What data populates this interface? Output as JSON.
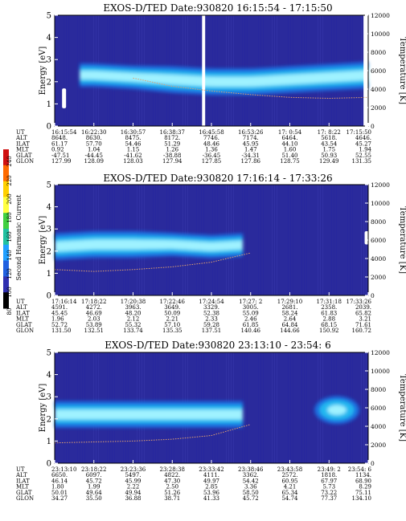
{
  "colors": {
    "background": "#2a2a9c",
    "band_outer": "#1a6fe0",
    "band_mid": "#22b8f0",
    "band_core": "#9ff2ff",
    "temperature_trace": "#e0a070"
  },
  "colorbar": {
    "label": "Second Harmonic Current",
    "ticks": [
      "240",
      "220",
      "200",
      "180",
      "160",
      "140",
      "120",
      "100",
      "80"
    ],
    "scale_colors": [
      "#d01010",
      "#ff6a00",
      "#ffd000",
      "#ffff40",
      "#40d040",
      "#20c0a0",
      "#20a0ff",
      "#2060e0",
      "#3030b0",
      "#000000"
    ]
  },
  "chart_data": [
    {
      "type": "heatmap",
      "title": "EXOS-D/TED   Date:930820   16:15:54 - 17:15:50",
      "ylabel": "Energy [eV]",
      "ylabel_right": "Temperature [K]",
      "ylim": [
        0,
        5
      ],
      "ylim_right": [
        0,
        12000
      ],
      "yticks": [
        "0",
        "1",
        "2",
        "3",
        "4",
        "5"
      ],
      "yticks_right": [
        "0",
        "2000",
        "4000",
        "6000",
        "8000",
        "10000",
        "12000"
      ],
      "x_rows": [
        {
          "label": "UT",
          "values": [
            "16:15:54",
            "16:22:30",
            "16:30:57",
            "16:38:37",
            "16:45:58",
            "16:53:26",
            "17: 0:54",
            "17: 8:22",
            "17:15:50"
          ]
        },
        {
          "label": "ALT",
          "values": [
            "8648.",
            "8630.",
            "8475.",
            "8172.",
            "7746.",
            "7174.",
            "6464.",
            "5618.",
            "4646."
          ]
        },
        {
          "label": "ILAT",
          "values": [
            "61.17",
            "57.70",
            "54.46",
            "51.29",
            "48.46",
            "45.95",
            "44.10",
            "43.54",
            "45.27"
          ]
        },
        {
          "label": "MLT",
          "values": [
            "0.92",
            "1.04",
            "1.15",
            "1.26",
            "1.36",
            "1.47",
            "1.60",
            "1.75",
            "1.94"
          ]
        },
        {
          "label": "GLAT",
          "values": [
            "-47.51",
            "-44.45",
            "-41.62",
            "-38.88",
            "-36.45",
            "-34.31",
            "51.40",
            "50.93",
            "52.55"
          ]
        },
        {
          "label": "GLON",
          "values": [
            "127.99",
            "128.09",
            "128.03",
            "127.94",
            "127.85",
            "127.86",
            "128.75",
            "129.49",
            "131.35"
          ]
        }
      ],
      "band": {
        "start": 0.08,
        "end": 1.0,
        "center_ev": [
          2.3,
          2.3,
          2.2,
          2.1,
          2.0,
          2.0,
          2.1,
          2.2,
          2.3
        ],
        "width_ev": [
          0.7,
          0.7,
          0.7,
          0.8,
          0.8,
          0.8,
          0.8,
          0.8,
          0.8
        ]
      },
      "temperature_k": [
        null,
        null,
        5200,
        4300,
        3800,
        3400,
        3100,
        3000,
        3100
      ],
      "gaps": [
        [
          0.47,
          0.48
        ],
        [
          0.985,
          1.0
        ]
      ],
      "markers": [
        [
          0.03,
          0.8,
          1.7
        ]
      ]
    },
    {
      "type": "heatmap",
      "title": "EXOS-D/TED   Date:930820   17:16:14 - 17:33:26",
      "ylabel": "Energy [eV]",
      "ylabel_right": "Temperature [K]",
      "ylim": [
        0,
        5
      ],
      "ylim_right": [
        0,
        12000
      ],
      "yticks": [
        "0",
        "1",
        "2",
        "3",
        "4",
        "5"
      ],
      "yticks_right": [
        "0",
        "2000",
        "4000",
        "6000",
        "8000",
        "10000",
        "12000"
      ],
      "x_rows": [
        {
          "label": "UT",
          "values": [
            "17:16:14",
            "17:18:22",
            "17:20:38",
            "17:22:46",
            "17:24:54",
            "17:27: 2",
            "17:29:10",
            "17:31:18",
            "17:33:26"
          ]
        },
        {
          "label": "ALT",
          "values": [
            "4591.",
            "4272.",
            "3963.",
            "3649.",
            "3329.",
            "3005.",
            "2681.",
            "2358.",
            "2039."
          ]
        },
        {
          "label": "ILAT",
          "values": [
            "45.45",
            "46.69",
            "48.20",
            "50.09",
            "52.38",
            "55.09",
            "58.24",
            "61.83",
            "65.82"
          ]
        },
        {
          "label": "MLT",
          "values": [
            "1.96",
            "2.03",
            "2.12",
            "2.21",
            "2.33",
            "2.46",
            "2.64",
            "2.88",
            "3.21"
          ]
        },
        {
          "label": "GLAT",
          "values": [
            "52.72",
            "53.89",
            "55.32",
            "57.10",
            "59.28",
            "61.85",
            "64.84",
            "68.15",
            "71.61"
          ]
        },
        {
          "label": "GLON",
          "values": [
            "131.50",
            "132.51",
            "133.74",
            "135.35",
            "137.51",
            "140.46",
            "144.66",
            "150.92",
            "160.72"
          ]
        }
      ],
      "band": {
        "start": 0.0,
        "end": 0.6,
        "center_ev": [
          2.2,
          2.3,
          2.3,
          2.3,
          2.2,
          2.3,
          2.6,
          2.9,
          3.0
        ],
        "width_ev": [
          0.8,
          0.8,
          0.8,
          0.7,
          0.7,
          0.7,
          0.8,
          0.8,
          0.8
        ]
      },
      "temperature_k": [
        2800,
        2600,
        2800,
        3100,
        3600,
        4600,
        null,
        null,
        null
      ],
      "gaps": [],
      "markers": [
        [
          0.995,
          2.3,
          2.9
        ]
      ]
    },
    {
      "type": "heatmap",
      "title": "EXOS-D/TED   Date:930820   23:13:10 - 23:54: 6",
      "ylabel": "Energy [eV]",
      "ylabel_right": "Temperature [K]",
      "ylim": [
        0,
        5
      ],
      "ylim_right": [
        0,
        12000
      ],
      "yticks": [
        "0",
        "1",
        "2",
        "3",
        "4",
        "5"
      ],
      "yticks_right": [
        "0",
        "2000",
        "4000",
        "6000",
        "8000",
        "10000",
        "12000"
      ],
      "x_rows": [
        {
          "label": "UT",
          "values": [
            "23:13:10",
            "23:18:22",
            "23:23:36",
            "23:28:38",
            "23:33:42",
            "23:38:46",
            "23:43:58",
            "23:49: 2",
            "23:54: 6"
          ]
        },
        {
          "label": "ALT",
          "values": [
            "6650.",
            "6097.",
            "5497.",
            "4822.",
            "4111.",
            "3362.",
            "2572.",
            "1818.",
            "1134."
          ]
        },
        {
          "label": "ILAT",
          "values": [
            "46.14",
            "45.72",
            "45.99",
            "47.30",
            "49.97",
            "54.42",
            "60.95",
            "67.97",
            "68.90"
          ]
        },
        {
          "label": "MLT",
          "values": [
            "1.80",
            "1.99",
            "2.22",
            "2.50",
            "2.85",
            "3.36",
            "4.21",
            "5.73",
            "8.29"
          ]
        },
        {
          "label": "GLAT",
          "values": [
            "50.01",
            "49.64",
            "49.94",
            "51.26",
            "53.96",
            "58.50",
            "65.34",
            "73.22",
            "75.11"
          ]
        },
        {
          "label": "GLON",
          "values": [
            "34.27",
            "35.50",
            "36.88",
            "38.71",
            "41.33",
            "45.72",
            "54.74",
            "77.37",
            "134.10"
          ]
        }
      ],
      "band": {
        "start": 0.0,
        "end": 0.6,
        "center_ev": [
          2.2,
          2.2,
          2.2,
          2.2,
          2.2,
          2.2,
          2.5,
          2.7,
          2.8
        ],
        "width_ev": [
          0.8,
          0.8,
          0.8,
          0.8,
          0.8,
          0.8,
          0.8,
          0.8,
          0.8
        ]
      },
      "temperature_k": [
        2200,
        2300,
        2400,
        2600,
        3000,
        4200,
        null,
        null,
        null
      ],
      "gaps": [],
      "markers": [],
      "extra_blobs": [
        [
          0.9,
          2.4,
          0.055,
          0.9
        ]
      ]
    }
  ]
}
